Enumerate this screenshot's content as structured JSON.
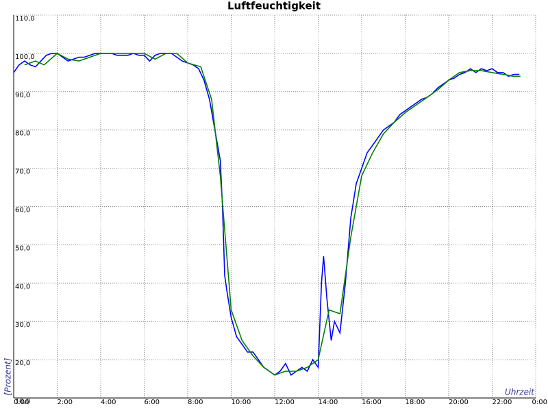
{
  "chart_data": {
    "type": "line",
    "title": "Luftfeuchtigkeit",
    "y_label": "[Prozent]",
    "x_label": "Uhrzeit",
    "xlim": [
      0,
      24
    ],
    "ylim": [
      10,
      110
    ],
    "grid": true,
    "xticks": [
      {
        "value": 0,
        "label": "0:00"
      },
      {
        "value": 2,
        "label": "2:00"
      },
      {
        "value": 4,
        "label": "4:00"
      },
      {
        "value": 6,
        "label": "6:00"
      },
      {
        "value": 8,
        "label": "8:00"
      },
      {
        "value": 10,
        "label": "10:00"
      },
      {
        "value": 12,
        "label": "12:00"
      },
      {
        "value": 14,
        "label": "14:00"
      },
      {
        "value": 16,
        "label": "16:00"
      },
      {
        "value": 18,
        "label": "18:00"
      },
      {
        "value": 20,
        "label": "20:00"
      },
      {
        "value": 22,
        "label": "22:00"
      },
      {
        "value": 24,
        "label": "0:00"
      }
    ],
    "yticks": [
      {
        "value": 10,
        "label": "10,0"
      },
      {
        "value": 20,
        "label": "20,0"
      },
      {
        "value": 30,
        "label": "30,0"
      },
      {
        "value": 40,
        "label": "40,0"
      },
      {
        "value": 50,
        "label": "50,0"
      },
      {
        "value": 60,
        "label": "60,0"
      },
      {
        "value": 70,
        "label": "70,0"
      },
      {
        "value": 80,
        "label": "80,0"
      },
      {
        "value": 90,
        "label": "90,0"
      },
      {
        "value": 100,
        "label": "100,0"
      },
      {
        "value": 110,
        "label": "110,0"
      }
    ],
    "series": [
      {
        "color": "#0000ff",
        "x": [
          0,
          0.25,
          0.5,
          0.75,
          1,
          1.25,
          1.5,
          1.75,
          2,
          2.25,
          2.5,
          2.75,
          3,
          3.25,
          3.5,
          3.75,
          4,
          4.25,
          4.5,
          4.75,
          5,
          5.25,
          5.5,
          5.75,
          6,
          6.25,
          6.5,
          6.75,
          7,
          7.25,
          7.5,
          7.75,
          8,
          8.25,
          8.5,
          8.75,
          9,
          9.25,
          9.5,
          9.6,
          9.7,
          9.8,
          10,
          10.25,
          10.5,
          10.75,
          11,
          11.25,
          11.5,
          11.75,
          12,
          12.25,
          12.5,
          12.75,
          13,
          13.25,
          13.5,
          13.75,
          14,
          14.15,
          14.25,
          14.4,
          14.6,
          14.75,
          15,
          15.25,
          15.5,
          15.75,
          16,
          16.25,
          16.5,
          16.75,
          17,
          17.25,
          17.5,
          17.75,
          18,
          18.25,
          18.5,
          18.75,
          19,
          19.25,
          19.5,
          19.75,
          20,
          20.25,
          20.5,
          20.75,
          21,
          21.25,
          21.5,
          21.75,
          22,
          22.25,
          22.5,
          22.75,
          23,
          23.25
        ],
        "values": [
          95,
          97,
          98,
          97,
          96.5,
          98,
          99.5,
          100,
          100,
          99,
          98,
          98.5,
          99,
          99,
          99.5,
          100,
          100,
          100,
          100,
          99.5,
          99.5,
          99.5,
          100,
          99.5,
          99.5,
          98,
          99.5,
          100,
          100,
          100,
          99,
          98,
          97.5,
          97,
          96,
          93,
          88,
          80,
          72,
          60,
          42,
          38,
          31,
          26,
          24,
          22,
          22,
          20,
          18,
          17,
          16,
          17,
          19,
          16,
          17,
          18,
          17,
          20,
          18,
          40,
          47,
          36,
          25,
          30,
          27,
          40,
          57,
          66,
          70,
          74,
          76,
          78,
          80,
          81,
          82,
          84,
          85,
          86,
          87,
          88,
          88.5,
          89.5,
          91,
          92,
          93,
          93.5,
          94.5,
          95,
          96,
          95,
          96,
          95.5,
          96,
          95,
          95,
          94,
          94.5,
          94.5
        ]
      },
      {
        "color": "#008000",
        "x": [
          0.5,
          1,
          1.4,
          2,
          2.5,
          3,
          4,
          5,
          6,
          6.5,
          7,
          7.5,
          8,
          8.6,
          9.1,
          9.5,
          10,
          10.5,
          11,
          11.5,
          12,
          12.5,
          13,
          13.5,
          14,
          14.5,
          15,
          15.5,
          16,
          16.5,
          17,
          17.5,
          18,
          18.5,
          19,
          19.5,
          20,
          20.5,
          21,
          21.5,
          22,
          22.5,
          23,
          23.3
        ],
        "values": [
          97,
          98,
          97,
          100,
          98.5,
          98,
          100,
          100,
          100,
          98.5,
          100,
          100,
          97.5,
          96.5,
          88,
          68,
          33,
          25,
          21,
          18,
          16,
          17,
          17,
          18,
          20,
          33,
          32,
          52,
          68,
          74,
          79,
          82,
          84.5,
          86.5,
          88.5,
          90.5,
          93,
          95,
          95.5,
          95.5,
          95,
          94.5,
          94,
          94
        ]
      }
    ]
  }
}
